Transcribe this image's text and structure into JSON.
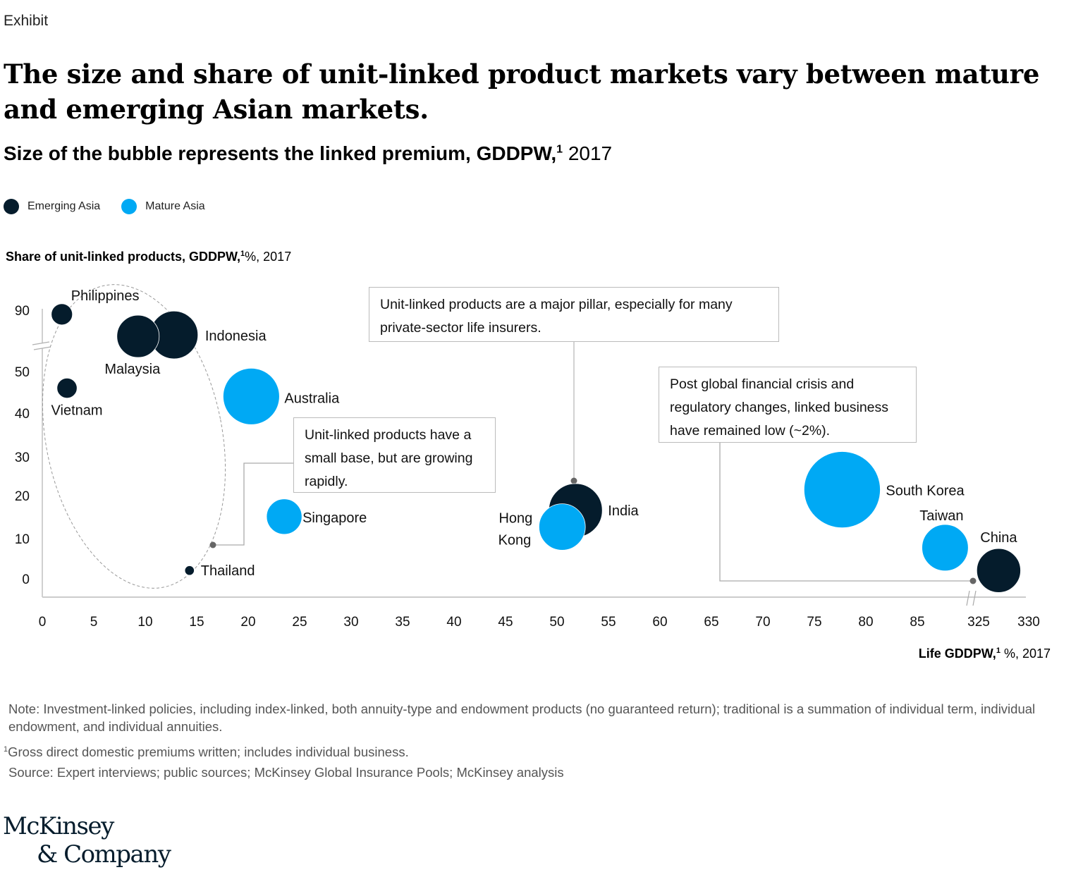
{
  "header": {
    "exhibit_label": "Exhibit",
    "title": "The size and share of unit-linked product markets vary between mature and emerging Asian markets.",
    "subtitle_bold": "Size of the bubble represents the linked premium, GDDPW,",
    "subtitle_sup": "1",
    "subtitle_light": " 2017"
  },
  "legend": [
    {
      "label": "Emerging Asia",
      "color": "#051c2c"
    },
    {
      "label": "Mature Asia",
      "color": "#00a9f4"
    }
  ],
  "colors": {
    "emerging": "#051c2c",
    "mature": "#00a9f4",
    "axis": "#c8c8c8",
    "callout_line": "#aaaaaa",
    "marker": "#666666"
  },
  "chart_data": {
    "type": "scatter",
    "subtype": "bubble",
    "title": "Size of the bubble represents the linked premium, GDDPW, 2017",
    "xlabel": "Life GDDPW, %, 2017",
    "ylabel": "Share of unit-linked products, GDDPW, %, 2017",
    "x_ticks": [
      "0",
      "5",
      "10",
      "15",
      "20",
      "25",
      "30",
      "35",
      "40",
      "45",
      "50",
      "55",
      "60",
      "65",
      "70",
      "75",
      "80",
      "85",
      "325",
      "330"
    ],
    "x_tick_values": [
      0,
      5,
      10,
      15,
      20,
      25,
      30,
      35,
      40,
      45,
      50,
      55,
      60,
      65,
      70,
      75,
      80,
      85,
      325,
      330
    ],
    "x_axis_break": "between 85 and 325",
    "y_ticks": [
      "0",
      "10",
      "20",
      "30",
      "40",
      "50",
      "90"
    ],
    "y_tick_values": [
      0,
      10,
      20,
      30,
      40,
      50,
      90
    ],
    "y_axis_break": "between 50 and 90",
    "xlim": [
      0,
      330
    ],
    "ylim": [
      0,
      90
    ],
    "grid": false,
    "legend_position": "top-left",
    "series": [
      {
        "name": "Emerging Asia",
        "points": [
          {
            "label": "Philippines",
            "x": 1.9,
            "y": 84,
            "size": 1.0
          },
          {
            "label": "Indonesia",
            "x": 12.8,
            "y": 54,
            "size": 5.1
          },
          {
            "label": "Malaysia",
            "x": 9.3,
            "y": 52,
            "size": 4.0
          },
          {
            "label": "Vietnam",
            "x": 2.4,
            "y": 46,
            "size": 0.9
          },
          {
            "label": "Thailand",
            "x": 14.3,
            "y": 2,
            "size": 0.2
          },
          {
            "label": "India",
            "x": 51.8,
            "y": 16.5,
            "size": 6.4
          },
          {
            "label": "China",
            "x": 327,
            "y": 2,
            "size": 4.3
          }
        ]
      },
      {
        "name": "Mature Asia",
        "points": [
          {
            "label": "Australia",
            "x": 20.3,
            "y": 44,
            "size": 7.1
          },
          {
            "label": "Singapore",
            "x": 23.5,
            "y": 15,
            "size": 2.8
          },
          {
            "label": "Hong Kong",
            "x": 50.5,
            "y": 12.5,
            "size": 4.8
          },
          {
            "label": "South Korea",
            "x": 77.7,
            "y": 21.5,
            "size": 13.0
          },
          {
            "label": "Taiwan",
            "x": 87.7,
            "y": 7.5,
            "size": 4.8
          }
        ]
      }
    ],
    "annotations": [
      {
        "text": "Unit-linked products are a major pillar, especially for many private-sector life insurers.",
        "points_to": "India"
      },
      {
        "text": "Unit-linked products have a small base, but are growing rapidly.",
        "points_to": "Emerging Asia group (Philippines, Indonesia, Malaysia, Vietnam, Thailand)"
      },
      {
        "text": "Post global financial crisis and regulatory changes, linked business have remained low (~2%).",
        "points_to": "China"
      }
    ]
  },
  "axes": {
    "y_title_bold": "Share of unit-linked products, GDDPW,",
    "y_title_sup": "1",
    "y_title_light": "%, 2017",
    "x_title_bold": "Life GDDPW,",
    "x_title_sup": "1",
    "x_title_light": " %, 2017"
  },
  "callouts": {
    "india": {
      "line1": "Unit-linked products are a major pillar, especially for many",
      "line2": "private-sector life insurers."
    },
    "emerging": {
      "line1": "Unit-linked products have a",
      "line2": "small base, but are growing",
      "line3": "rapidly."
    },
    "china": {
      "line1": "Post global financial crisis and",
      "line2": "regulatory changes, linked business",
      "line3": "have remained low (~2%)."
    }
  },
  "footer": {
    "note": "Note: Investment-linked policies, including index-linked, both annuity-type and endowment products (no guaranteed return); traditional is a summation of individual term, individual endowment, and individual annuities.",
    "footnote_mark": "1",
    "footnote": "Gross direct domestic premiums written; includes individual business.",
    "source": "Source: Expert interviews; public sources; McKinsey Global Insurance Pools; McKinsey analysis",
    "logo_line1": "McKinsey",
    "logo_line2": "& Company"
  }
}
